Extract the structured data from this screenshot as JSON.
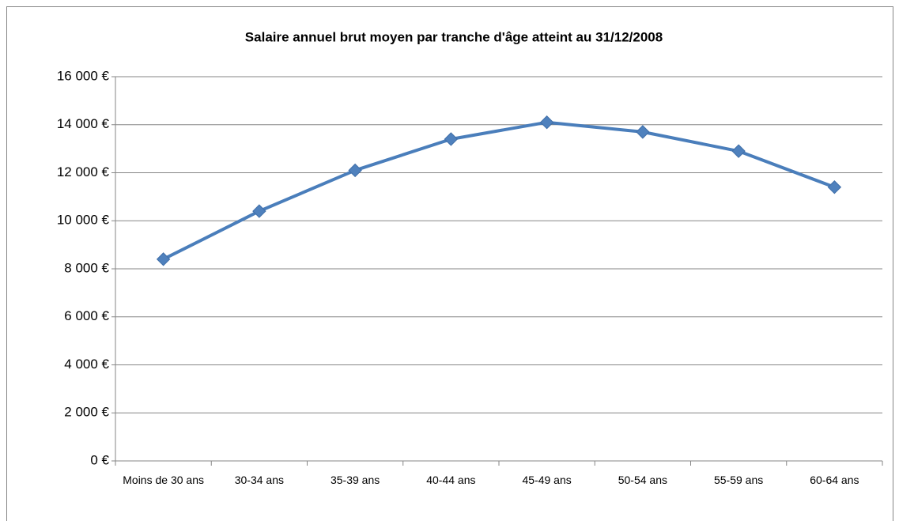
{
  "chart_data": {
    "type": "line",
    "title": "Salaire annuel brut moyen par tranche d'âge atteint au 31/12/2008",
    "categories": [
      "Moins de 30 ans",
      "30-34 ans",
      "35-39 ans",
      "40-44 ans",
      "45-49 ans",
      "50-54 ans",
      "55-59 ans",
      "60-64 ans"
    ],
    "series": [
      {
        "name": "Salaire annuel brut moyen",
        "color": "#4a7ebb",
        "values": [
          8400,
          10400,
          12100,
          13400,
          14100,
          13700,
          12900,
          11400
        ]
      }
    ],
    "ylim": [
      0,
      16000
    ],
    "yticks": [
      {
        "value": 0,
        "label": "0 €"
      },
      {
        "value": 2000,
        "label": "2 000 €"
      },
      {
        "value": 4000,
        "label": "4 000 €"
      },
      {
        "value": 6000,
        "label": "6 000 €"
      },
      {
        "value": 8000,
        "label": "8 000 €"
      },
      {
        "value": 10000,
        "label": "10 000 €"
      },
      {
        "value": 12000,
        "label": "12 000 €"
      },
      {
        "value": 14000,
        "label": "14 000 €"
      },
      {
        "value": 16000,
        "label": "16 000 €"
      }
    ],
    "grid": true
  }
}
